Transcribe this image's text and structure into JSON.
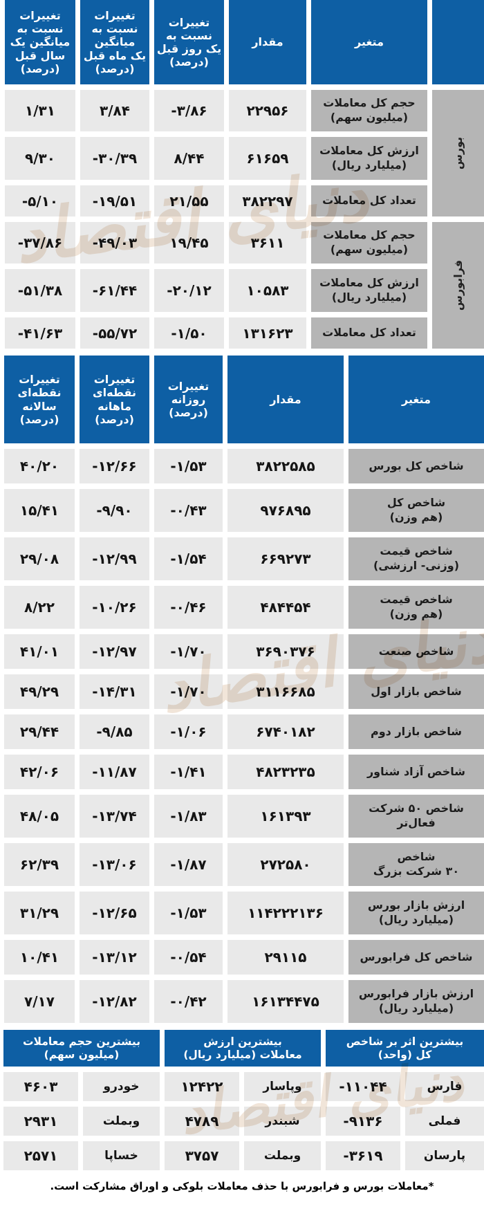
{
  "colors": {
    "header_blue": "#0e5fa4",
    "row_label_gray": "#b5b5b5",
    "value_cell_gray": "#e9e9e9",
    "watermark_tan": "#b57a3e"
  },
  "watermark_text": "دنیای اقتصاد",
  "trades_table": {
    "headers": {
      "variable": "متغیر",
      "value": "مقدار",
      "day": "تغییرات\nنسبت به\nیک روز قبل\n(درصد)",
      "month": "تغییرات\nنسبت به\nمیانگین\nیک ماه قبل\n(درصد)",
      "year": "تغییرات\nنسبت به\nمیانگین یک\nسال قبل\n(درصد)"
    },
    "groups": [
      {
        "name": "بورس",
        "rows": [
          {
            "variable": "حجم کل معاملات\n(میلیون سهم)",
            "value": "۲۲۹۵۶",
            "day": "-۳/۸۶",
            "month": "۳/۸۴",
            "year": "۱/۳۱"
          },
          {
            "variable": "ارزش کل معاملات\n(میلیارد ریال)",
            "value": "۶۱۶۵۹",
            "day": "۸/۴۴",
            "month": "-۳۰/۳۹",
            "year": "۹/۳۰"
          },
          {
            "variable": "تعداد کل معاملات",
            "value": "۳۸۲۲۹۷",
            "day": "۲۱/۵۵",
            "month": "-۱۹/۵۱",
            "year": "-۵/۱۰"
          }
        ]
      },
      {
        "name": "فرابورس",
        "rows": [
          {
            "variable": "حجم کل معاملات\n(میلیون سهم)",
            "value": "۳۶۱۱",
            "day": "۱۹/۴۵",
            "month": "-۴۹/۰۳",
            "year": "-۳۷/۸۶"
          },
          {
            "variable": "ارزش کل معاملات\n(میلیارد ریال)",
            "value": "۱۰۵۸۳",
            "day": "-۲۰/۱۲",
            "month": "-۶۱/۴۴",
            "year": "-۵۱/۳۸"
          },
          {
            "variable": "تعداد کل معاملات",
            "value": "۱۳۱۶۲۳",
            "day": "-۱/۵۰",
            "month": "-۵۵/۷۲",
            "year": "-۴۱/۶۳"
          }
        ]
      }
    ]
  },
  "index_table": {
    "headers": {
      "variable": "متغیر",
      "value": "مقدار",
      "day": "تغییرات\nروزانه\n(درصد)",
      "month": "تغییرات\nنقطه‌ای\nماهانه\n(درصد)",
      "year": "تغییرات\nنقطه‌ای\nسالانه\n(درصد)"
    },
    "rows": [
      {
        "variable": "شاخص کل بورس",
        "value": "۳۸۲۲۵۸۵",
        "day": "-۱/۵۳",
        "month": "-۱۲/۶۶",
        "year": "۴۰/۲۰"
      },
      {
        "variable": "شاخص کل\n(هم وزن)",
        "value": "۹۷۶۸۹۵",
        "day": "-۰/۴۳",
        "month": "-۹/۹۰",
        "year": "۱۵/۴۱"
      },
      {
        "variable": "شاخص قیمت\n(وزنی- ارزشی)",
        "value": "۶۶۹۲۷۳",
        "day": "-۱/۵۴",
        "month": "-۱۲/۹۹",
        "year": "۲۹/۰۸"
      },
      {
        "variable": "شاخص قیمت\n(هم وزن)",
        "value": "۴۸۴۴۵۴",
        "day": "-۰/۴۶",
        "month": "-۱۰/۲۶",
        "year": "۸/۲۲"
      },
      {
        "variable": "شاخص صنعت",
        "value": "۳۶۹۰۳۷۶",
        "day": "-۱/۷۰",
        "month": "-۱۲/۹۷",
        "year": "۴۱/۰۱"
      },
      {
        "variable": "شاخص بازار اول",
        "value": "۳۱۱۶۶۸۵",
        "day": "-۱/۷۰",
        "month": "-۱۴/۳۱",
        "year": "۴۹/۲۹"
      },
      {
        "variable": "شاخص بازار دوم",
        "value": "۶۷۴۰۱۸۲",
        "day": "-۱/۰۶",
        "month": "-۹/۸۵",
        "year": "۲۹/۴۴"
      },
      {
        "variable": "شاخص آزاد شناور",
        "value": "۴۸۲۳۲۳۵",
        "day": "-۱/۴۱",
        "month": "-۱۱/۸۷",
        "year": "۴۲/۰۶"
      },
      {
        "variable": "شاخص ۵۰ شرکت\nفعال‌تر",
        "value": "۱۶۱۳۹۳",
        "day": "-۱/۸۳",
        "month": "-۱۳/۷۴",
        "year": "۴۸/۰۵"
      },
      {
        "variable": "شاخص\n۳۰ شرکت بزرگ",
        "value": "۲۷۲۵۸۰",
        "day": "-۱/۸۷",
        "month": "-۱۳/۰۶",
        "year": "۶۲/۳۹"
      },
      {
        "variable": "ارزش بازار بورس\n(میلیارد ریال)",
        "value": "۱۱۴۲۲۲۱۳۶",
        "day": "-۱/۵۳",
        "month": "-۱۲/۶۵",
        "year": "۳۱/۲۹"
      },
      {
        "variable": "شاخص کل فرابورس",
        "value": "۲۹۱۱۵",
        "day": "-۰/۵۴",
        "month": "-۱۳/۱۲",
        "year": "۱۰/۴۱"
      },
      {
        "variable": "ارزش بازار فرابورس\n(میلیارد ریال)",
        "value": "۱۶۱۳۴۴۷۵",
        "day": "-۰/۴۲",
        "month": "-۱۲/۸۲",
        "year": "۷/۱۷"
      }
    ]
  },
  "movers_table": {
    "sections": [
      {
        "header": "بیشترین اثر بر شاخص\nکل (واحد)",
        "rows": [
          {
            "name": "فارس",
            "value": "-۱۱۰۴۴"
          },
          {
            "name": "فملی",
            "value": "-۹۱۳۶"
          },
          {
            "name": "پارسان",
            "value": "-۳۶۱۹"
          }
        ]
      },
      {
        "header": "بیشترین ارزش\nمعاملات (میلیارد ریال)",
        "rows": [
          {
            "name": "وپاسار",
            "value": "۱۲۴۲۲"
          },
          {
            "name": "شبندر",
            "value": "۴۷۸۹"
          },
          {
            "name": "وبملت",
            "value": "۳۷۵۷"
          }
        ]
      },
      {
        "header": "بیشترین حجم معاملات\n(میلیون سهم)",
        "rows": [
          {
            "name": "خودرو",
            "value": "۴۶۰۳"
          },
          {
            "name": "وبملت",
            "value": "۲۹۳۱"
          },
          {
            "name": "خساپا",
            "value": "۲۵۷۱"
          }
        ]
      }
    ]
  },
  "footnote": "*معاملات بورس و فرابورس با حذف معاملات بلوکی و اوراق مشارکت است."
}
